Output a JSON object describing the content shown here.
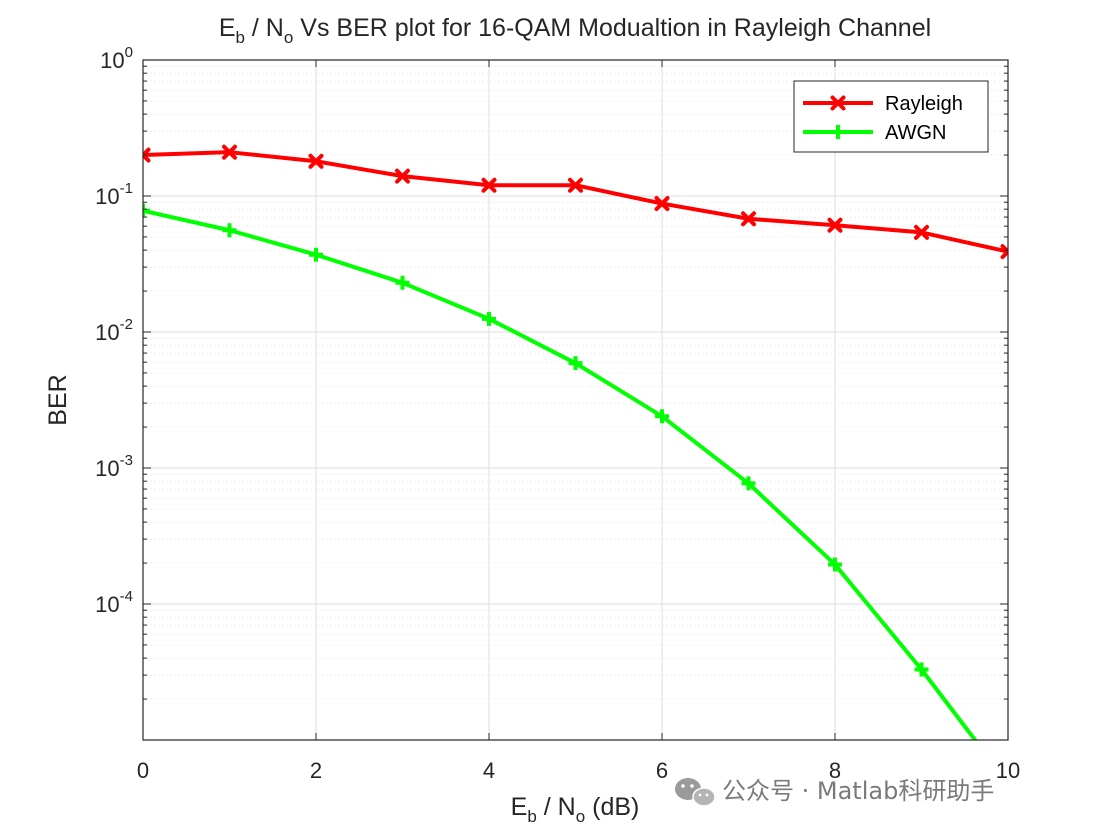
{
  "chart_data": {
    "type": "line",
    "title_parts": [
      "E",
      "b",
      " / N",
      "o",
      " Vs BER plot for 16-QAM Modualtion in Rayleigh Channel"
    ],
    "xlabel_parts": [
      "E",
      "b",
      " / N",
      "o",
      " (dB)"
    ],
    "ylabel": "BER",
    "x": [
      0,
      1,
      2,
      3,
      4,
      5,
      6,
      7,
      8,
      9,
      10
    ],
    "xlim": [
      0,
      10
    ],
    "ylim": [
      1e-05,
      1
    ],
    "yscale": "log",
    "grid": true,
    "minor_grid": true,
    "legend_position": "top-right",
    "x_ticks": [
      {
        "value": 0,
        "label": "0"
      },
      {
        "value": 2,
        "label": "2"
      },
      {
        "value": 4,
        "label": "4"
      },
      {
        "value": 6,
        "label": "6"
      },
      {
        "value": 8,
        "label": "8"
      },
      {
        "value": 10,
        "label": "10"
      }
    ],
    "y_ticks": [
      {
        "value": 1,
        "base": "10",
        "exp": "0"
      },
      {
        "value": 0.1,
        "base": "10",
        "exp": "-1"
      },
      {
        "value": 0.01,
        "base": "10",
        "exp": "-2"
      },
      {
        "value": 0.001,
        "base": "10",
        "exp": "-3"
      },
      {
        "value": 0.0001,
        "base": "10",
        "exp": "-4"
      }
    ],
    "series": [
      {
        "name": "Rayleigh",
        "color": "#ff0000",
        "marker": "x",
        "values": [
          0.2,
          0.21,
          0.18,
          0.14,
          0.12,
          0.12,
          0.088,
          0.068,
          0.061,
          0.054,
          0.039
        ]
      },
      {
        "name": "AWGN",
        "color": "#00ff00",
        "marker": "+",
        "values": [
          0.078,
          0.056,
          0.037,
          0.023,
          0.0125,
          0.0059,
          0.0024,
          0.00077,
          0.000195,
          3.3e-05,
          4.8e-06
        ]
      }
    ]
  },
  "watermark": {
    "text": "公众号 · Matlab科研助手"
  }
}
